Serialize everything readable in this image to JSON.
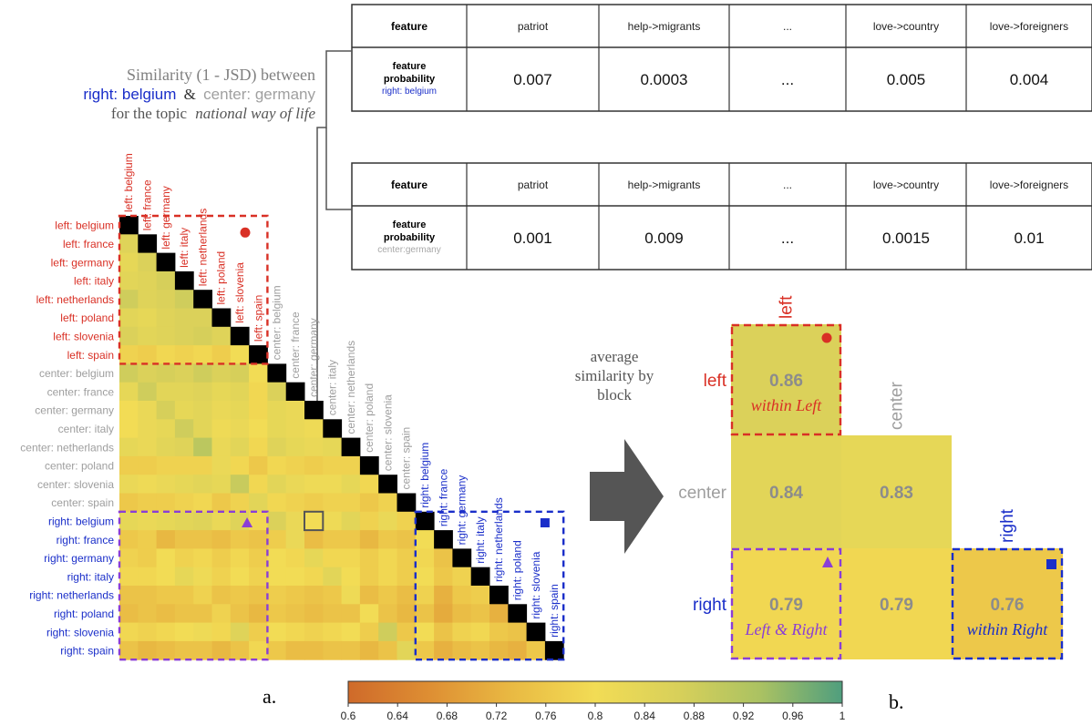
{
  "header": {
    "line1": "Similarity (1 - JSD) between",
    "pair_right": "right: belgium",
    "pair_amp": "&",
    "pair_center": "center: germany",
    "line3_prefix": "for the topic",
    "line3_topic": "national way of life"
  },
  "tables": [
    {
      "feature_header": "feature",
      "row_label_1": "feature",
      "row_label_2": "probability",
      "row_sub": "right: belgium",
      "columns": [
        "patriot",
        "help->migrants",
        "...",
        "love->country",
        "love->foreigners"
      ],
      "values": [
        "0.007",
        "0.0003",
        "...",
        "0.005",
        "0.004"
      ]
    },
    {
      "feature_header": "feature",
      "row_label_1": "feature",
      "row_label_2": "probability",
      "row_sub": "center:germany",
      "columns": [
        "patriot",
        "help->migrants",
        "...",
        "love->country",
        "love->foreigners"
      ],
      "values": [
        "0.001",
        "0.009",
        "...",
        "0.0015",
        "0.01"
      ]
    }
  ],
  "arrow_label": [
    "average",
    "similarity by",
    "block"
  ],
  "panel_labels": {
    "a": "a.",
    "b": "b."
  },
  "colors": {
    "left": "#d93025",
    "center": "#9e9e9e",
    "right": "#1a2ec9",
    "purple": "#8a3ed6",
    "diagonal": "#000000"
  },
  "colorbar": {
    "min": 0.6,
    "max": 1.0,
    "ticks": [
      "0.6",
      "0.64",
      "0.68",
      "0.72",
      "0.76",
      "0.8",
      "0.84",
      "0.88",
      "0.92",
      "0.96",
      "1"
    ],
    "colormap": [
      "#cf6a2a",
      "#de8f33",
      "#e9ba43",
      "#f2dc55",
      "#d8d05a",
      "#abc262",
      "#4f9e7e"
    ]
  },
  "chart_data": [
    {
      "type": "heatmap",
      "labels": [
        "left: belgium",
        "left: france",
        "left: germany",
        "left: italy",
        "left: netherlands",
        "left: poland",
        "left: slovenia",
        "left: spain",
        "center: belgium",
        "center: france",
        "center: germany",
        "center: italy",
        "center: netherlands",
        "center: poland",
        "center: slovenia",
        "center: spain",
        "right: belgium",
        "right: france",
        "right: germany",
        "right: italy",
        "right: netherlands",
        "right: poland",
        "right: slovenia",
        "right: spain"
      ],
      "lower_triangle_values": [
        [],
        [
          0.85
        ],
        [
          0.83,
          0.86
        ],
        [
          0.84,
          0.85,
          0.87
        ],
        [
          0.88,
          0.85,
          0.86,
          0.88
        ],
        [
          0.84,
          0.83,
          0.85,
          0.86,
          0.86
        ],
        [
          0.86,
          0.84,
          0.85,
          0.86,
          0.87,
          0.85
        ],
        [
          0.78,
          0.77,
          0.79,
          0.78,
          0.79,
          0.77,
          0.8
        ],
        [
          0.88,
          0.86,
          0.87,
          0.86,
          0.88,
          0.86,
          0.87,
          0.8
        ],
        [
          0.83,
          0.88,
          0.84,
          0.84,
          0.85,
          0.83,
          0.84,
          0.79,
          0.86
        ],
        [
          0.8,
          0.82,
          0.87,
          0.83,
          0.84,
          0.82,
          0.83,
          0.79,
          0.83,
          0.82
        ],
        [
          0.8,
          0.82,
          0.83,
          0.88,
          0.84,
          0.81,
          0.82,
          0.8,
          0.83,
          0.82,
          0.81
        ],
        [
          0.83,
          0.82,
          0.84,
          0.85,
          0.91,
          0.82,
          0.84,
          0.79,
          0.85,
          0.83,
          0.82,
          0.83
        ],
        [
          0.77,
          0.77,
          0.78,
          0.78,
          0.78,
          0.82,
          0.79,
          0.76,
          0.79,
          0.78,
          0.77,
          0.78,
          0.78
        ],
        [
          0.82,
          0.81,
          0.82,
          0.83,
          0.84,
          0.83,
          0.89,
          0.79,
          0.84,
          0.82,
          0.81,
          0.81,
          0.83,
          0.79
        ],
        [
          0.76,
          0.77,
          0.77,
          0.78,
          0.79,
          0.76,
          0.78,
          0.84,
          0.79,
          0.78,
          0.77,
          0.78,
          0.78,
          0.76,
          0.78
        ],
        [
          0.83,
          0.82,
          0.83,
          0.84,
          0.85,
          0.82,
          0.85,
          0.79,
          0.86,
          0.82,
          0.8,
          0.81,
          0.84,
          0.78,
          0.82,
          0.78
        ],
        [
          0.76,
          0.77,
          0.73,
          0.75,
          0.75,
          0.74,
          0.76,
          0.75,
          0.77,
          0.82,
          0.74,
          0.76,
          0.76,
          0.73,
          0.76,
          0.75,
          0.8
        ],
        [
          0.78,
          0.77,
          0.8,
          0.78,
          0.79,
          0.77,
          0.79,
          0.77,
          0.8,
          0.79,
          0.83,
          0.79,
          0.79,
          0.77,
          0.79,
          0.77,
          0.79,
          0.75
        ],
        [
          0.79,
          0.79,
          0.8,
          0.83,
          0.81,
          0.78,
          0.8,
          0.78,
          0.8,
          0.8,
          0.79,
          0.84,
          0.8,
          0.77,
          0.79,
          0.77,
          0.8,
          0.76,
          0.78
        ],
        [
          0.75,
          0.75,
          0.76,
          0.76,
          0.78,
          0.75,
          0.76,
          0.75,
          0.77,
          0.76,
          0.75,
          0.76,
          0.81,
          0.74,
          0.76,
          0.74,
          0.78,
          0.72,
          0.76,
          0.77
        ],
        [
          0.74,
          0.75,
          0.74,
          0.75,
          0.75,
          0.78,
          0.75,
          0.73,
          0.76,
          0.75,
          0.74,
          0.75,
          0.75,
          0.8,
          0.75,
          0.73,
          0.75,
          0.71,
          0.74,
          0.75,
          0.72
        ],
        [
          0.79,
          0.78,
          0.79,
          0.8,
          0.81,
          0.79,
          0.85,
          0.77,
          0.8,
          0.79,
          0.78,
          0.79,
          0.8,
          0.77,
          0.88,
          0.76,
          0.8,
          0.75,
          0.78,
          0.79,
          0.76,
          0.75
        ],
        [
          0.75,
          0.73,
          0.74,
          0.75,
          0.75,
          0.73,
          0.75,
          0.79,
          0.76,
          0.74,
          0.74,
          0.75,
          0.75,
          0.73,
          0.75,
          0.84,
          0.76,
          0.72,
          0.74,
          0.75,
          0.73,
          0.72,
          0.76
        ]
      ],
      "diagonal": 1.0,
      "highlighted_pair": [
        "right: belgium",
        "center: germany"
      ]
    },
    {
      "type": "heatmap",
      "blocks": [
        "left",
        "center",
        "right"
      ],
      "values": [
        [
          0.86,
          null,
          null
        ],
        [
          0.84,
          0.83,
          null
        ],
        [
          0.79,
          0.79,
          0.76
        ]
      ],
      "annotations": {
        "left_left": "within Left",
        "right_left": "Left & Right",
        "right_right": "within Right"
      }
    }
  ]
}
